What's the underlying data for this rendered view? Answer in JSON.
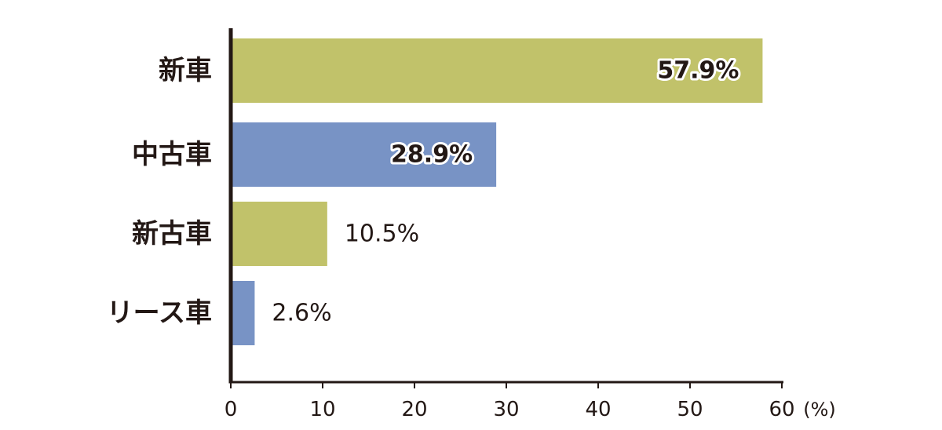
{
  "chart_data": {
    "type": "bar",
    "orientation": "horizontal",
    "categories": [
      "新車",
      "中古車",
      "新古車",
      "リース車"
    ],
    "values": [
      57.9,
      28.9,
      10.5,
      2.6
    ],
    "value_labels": [
      "57.9%",
      "28.9%",
      "10.5%",
      "2.6%"
    ],
    "bar_colors": [
      "#c1c26a",
      "#7893c5",
      "#c1c26a",
      "#7893c5"
    ],
    "xlim": [
      0,
      60
    ],
    "xticks": [
      0,
      10,
      20,
      30,
      40,
      50,
      60
    ],
    "x_unit": "(%)",
    "grid": false,
    "legend": false
  },
  "colors": {
    "axis": "#231815",
    "text": "#231815"
  }
}
